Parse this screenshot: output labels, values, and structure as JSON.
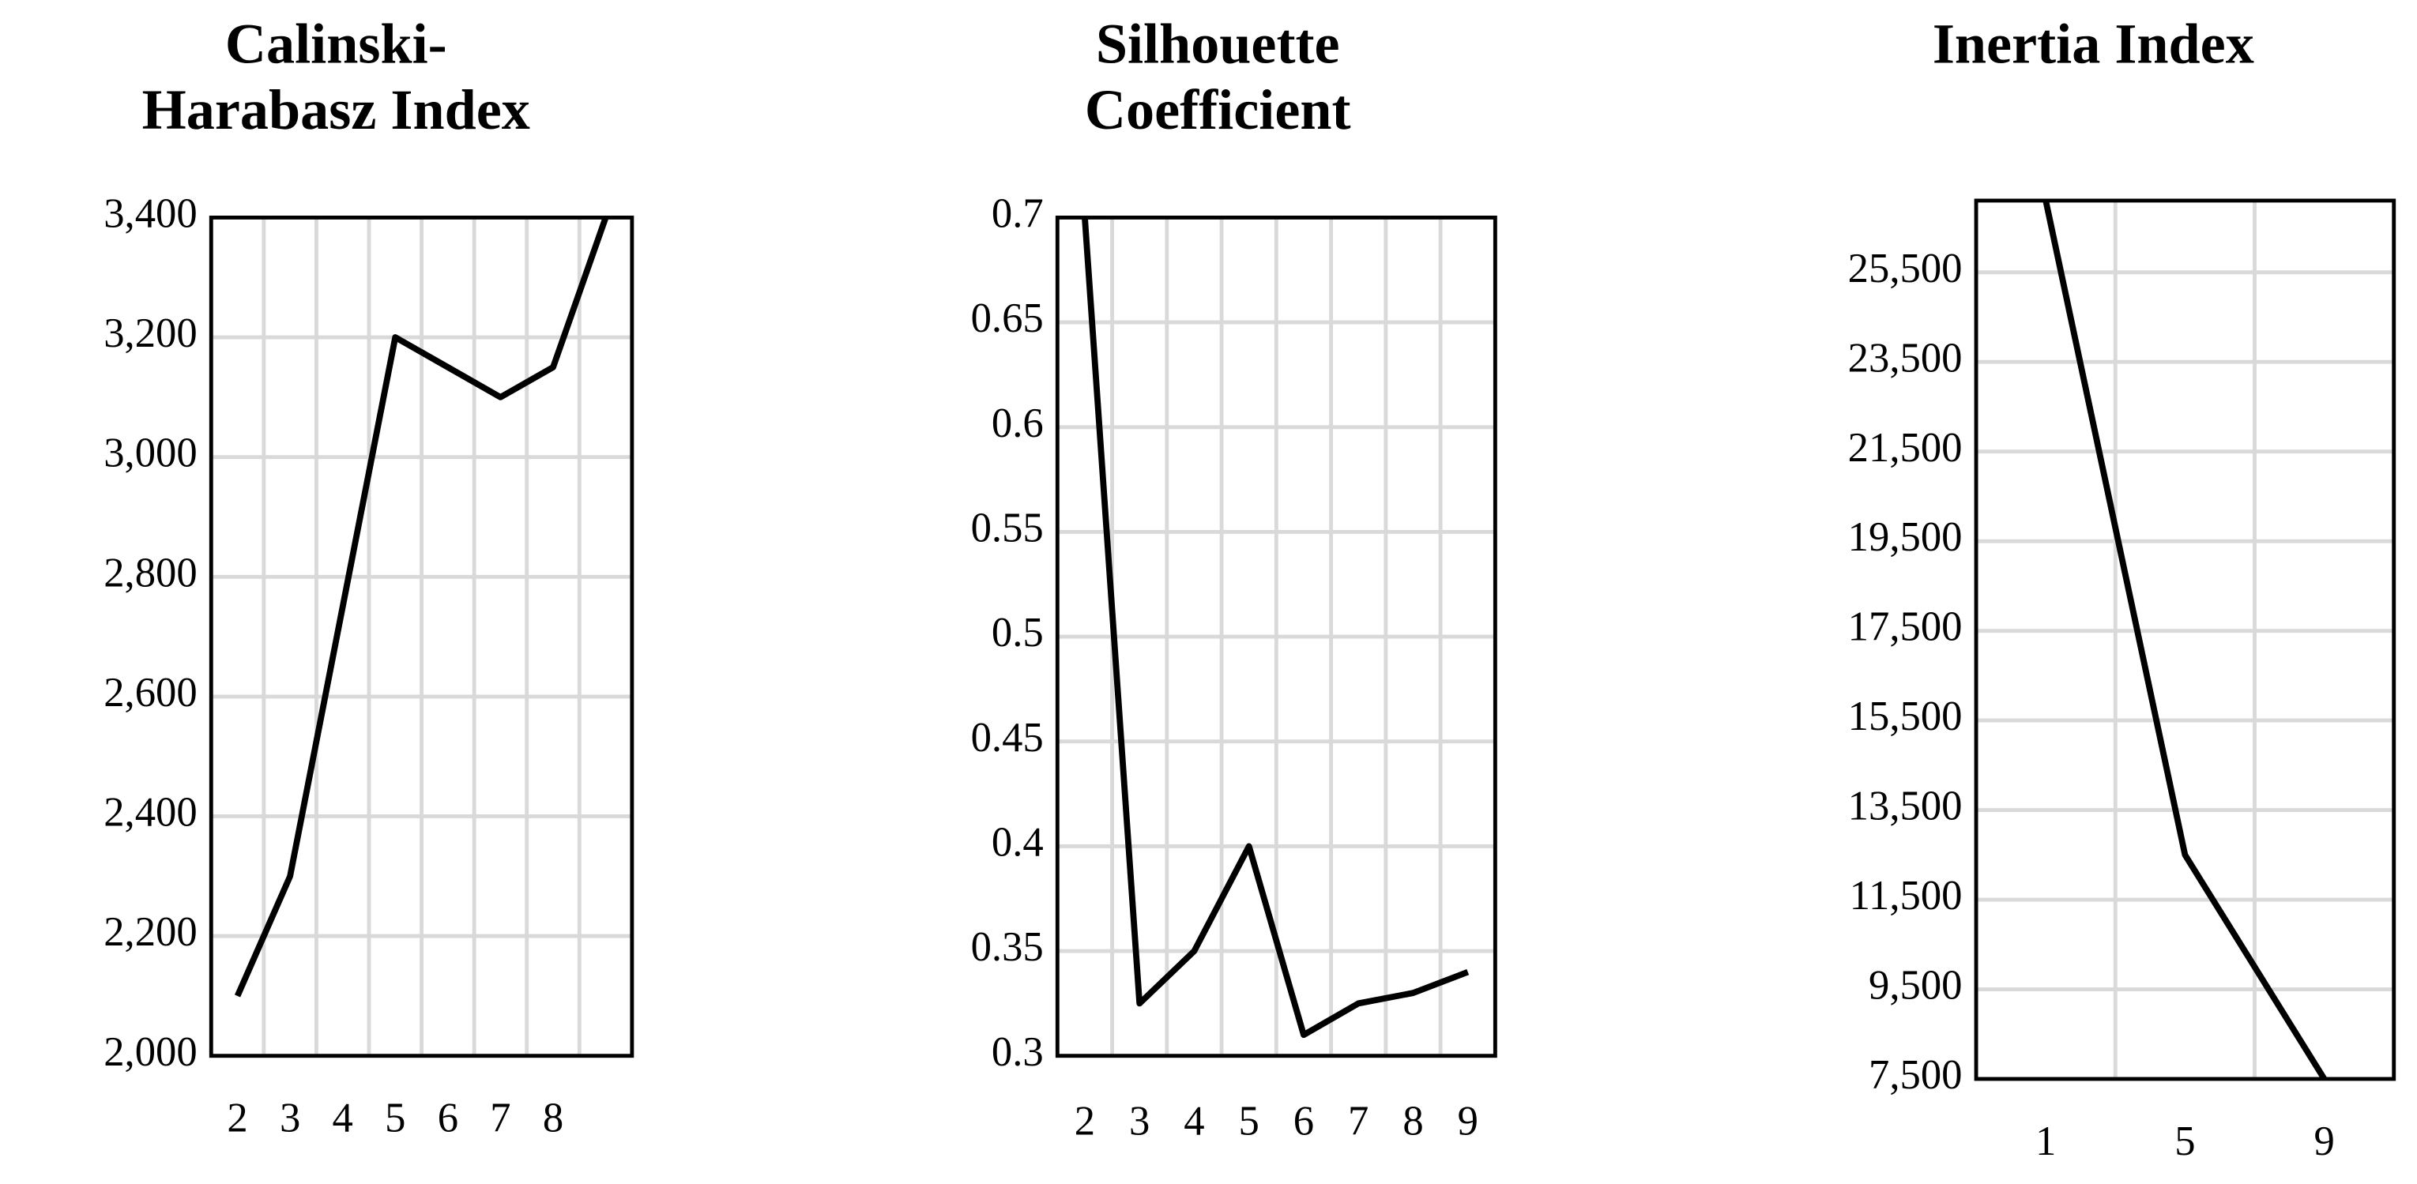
{
  "chart_data": [
    {
      "type": "line",
      "title": [
        "Calinski-",
        "Harabasz Index"
      ],
      "categories": [
        "2",
        "3",
        "4",
        "5",
        "6",
        "7",
        "8",
        null
      ],
      "values": [
        2100,
        2300,
        2750,
        3200,
        3150,
        3100,
        3150,
        3400
      ],
      "color": "#000000",
      "ylim": [
        2000,
        3400
      ],
      "yticks": [
        {
          "value": 2000,
          "label": "2,000"
        },
        {
          "value": 2200,
          "label": "2,200"
        },
        {
          "value": 2400,
          "label": "2,400"
        },
        {
          "value": 2600,
          "label": "2,600"
        },
        {
          "value": 2800,
          "label": "2,800"
        },
        {
          "value": 3000,
          "label": "3,000"
        },
        {
          "value": 3200,
          "label": "3,200"
        },
        {
          "value": 3400,
          "label": "3,400"
        }
      ],
      "grid": true
    },
    {
      "type": "line",
      "title": [
        "Silhouette",
        "Coefficient"
      ],
      "categories": [
        "2",
        "3",
        "4",
        "5",
        "6",
        "7",
        "8",
        "9"
      ],
      "values": [
        0.7,
        0.325,
        0.35,
        0.4,
        0.31,
        0.325,
        0.33,
        0.34
      ],
      "color": "#000000",
      "ylim": [
        0.3,
        0.7
      ],
      "yticks": [
        0.3,
        0.35,
        0.4,
        0.45,
        0.5,
        0.55,
        0.6,
        0.65,
        0.7
      ],
      "grid": true
    },
    {
      "type": "line",
      "title": [
        "Inertia Index"
      ],
      "x": [
        1,
        5,
        9
      ],
      "values": [
        27100,
        12500,
        7500
      ],
      "color": "#000000",
      "xlim": [
        -1,
        11
      ],
      "xticks": [
        1,
        5,
        9
      ],
      "ylim": [
        7500,
        27100
      ],
      "yticks": [
        {
          "value": 7500,
          "label": "7,500"
        },
        {
          "value": 9500,
          "label": "9,500"
        },
        {
          "value": 11500,
          "label": "11,500"
        },
        {
          "value": 13500,
          "label": "13,500"
        },
        {
          "value": 15500,
          "label": "15,500"
        },
        {
          "value": 17500,
          "label": "17,500"
        },
        {
          "value": 19500,
          "label": "19,500"
        },
        {
          "value": 21500,
          "label": "21,500"
        },
        {
          "value": 23500,
          "label": "23,500"
        },
        {
          "value": 25500,
          "label": "25,500"
        }
      ],
      "grid": true
    }
  ]
}
